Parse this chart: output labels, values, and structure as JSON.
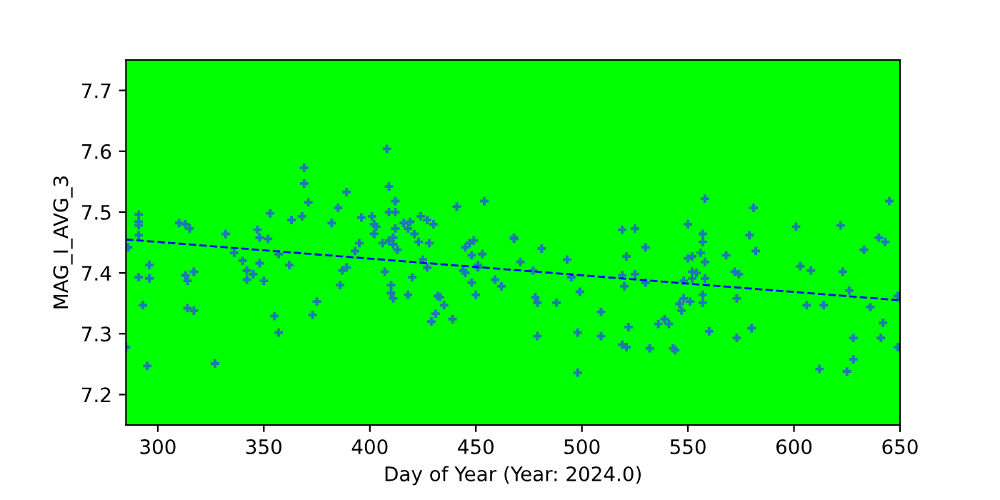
{
  "chart_data": {
    "type": "scatter",
    "xlabel": "Day of Year (Year: 2024.0)",
    "ylabel": "MAG_I_AVG_3",
    "xlim": [
      285,
      650
    ],
    "ylim": [
      7.15,
      7.75
    ],
    "xticks": [
      300,
      350,
      400,
      450,
      500,
      550,
      600,
      650
    ],
    "yticks": [
      7.2,
      7.3,
      7.4,
      7.5,
      7.6,
      7.7
    ],
    "grid": false,
    "series": [
      {
        "color": "#1f77b4",
        "marker": "cross",
        "x": [
          286,
          285,
          291,
          291,
          291,
          291,
          291,
          293,
          295,
          296,
          296,
          310,
          313,
          315,
          313,
          314,
          317,
          314,
          317,
          327,
          332,
          336,
          340,
          342,
          342,
          345,
          348,
          350,
          347,
          348,
          352,
          353,
          357,
          362,
          355,
          357,
          363,
          368,
          369,
          369,
          371,
          373,
          375,
          389,
          385,
          382,
          386,
          387,
          389,
          393,
          395,
          396,
          401,
          402,
          403,
          402,
          408,
          409,
          412,
          409,
          412,
          407,
          410,
          410,
          411,
          406,
          409,
          411,
          411,
          413,
          412,
          416,
          419,
          418,
          421,
          420,
          418,
          423,
          424,
          427,
          430,
          428,
          425,
          427,
          432,
          433,
          435,
          431,
          429,
          439,
          441,
          454,
          445,
          447,
          449,
          448,
          453,
          444,
          445,
          451,
          451,
          448,
          450,
          459,
          462,
          468,
          468,
          471,
          481,
          477,
          478,
          479,
          479,
          488,
          493,
          495,
          499,
          498,
          498,
          509,
          509,
          519,
          525,
          521,
          519,
          520,
          525,
          530,
          530,
          522,
          519,
          521,
          532,
          536,
          539,
          541,
          543,
          544,
          546,
          547,
          548,
          551,
          550,
          550,
          552,
          552,
          554,
          552,
          548,
          557,
          557,
          556,
          558,
          558,
          558,
          557,
          557,
          560,
          568,
          572,
          574,
          573,
          573,
          579,
          581,
          582,
          580,
          601,
          603,
          608,
          606,
          614,
          612,
          622,
          623,
          626,
          628,
          628,
          625,
          633,
          636,
          640,
          643,
          642,
          641,
          645,
          649,
          649
        ],
        "values": [
          7.442,
          7.278,
          7.496,
          7.484,
          7.478,
          7.462,
          7.393,
          7.347,
          7.247,
          7.413,
          7.391,
          7.482,
          7.48,
          7.473,
          7.396,
          7.387,
          7.402,
          7.342,
          7.338,
          7.251,
          7.464,
          7.433,
          7.42,
          7.404,
          7.389,
          7.398,
          7.416,
          7.387,
          7.471,
          7.458,
          7.456,
          7.498,
          7.431,
          7.413,
          7.329,
          7.302,
          7.487,
          7.493,
          7.573,
          7.547,
          7.516,
          7.331,
          7.353,
          7.533,
          7.507,
          7.482,
          7.38,
          7.404,
          7.409,
          7.436,
          7.449,
          7.491,
          7.493,
          7.48,
          7.476,
          7.464,
          7.604,
          7.542,
          7.518,
          7.5,
          7.5,
          7.402,
          7.38,
          7.367,
          7.358,
          7.449,
          7.453,
          7.458,
          7.447,
          7.438,
          7.473,
          7.482,
          7.484,
          7.473,
          7.464,
          7.393,
          7.364,
          7.451,
          7.493,
          7.487,
          7.48,
          7.449,
          7.422,
          7.409,
          7.362,
          7.36,
          7.347,
          7.333,
          7.32,
          7.324,
          7.509,
          7.518,
          7.442,
          7.449,
          7.453,
          7.429,
          7.431,
          7.404,
          7.4,
          7.413,
          7.409,
          7.384,
          7.364,
          7.389,
          7.378,
          7.456,
          7.458,
          7.418,
          7.44,
          7.404,
          7.36,
          7.351,
          7.296,
          7.351,
          7.422,
          7.393,
          7.369,
          7.302,
          7.236,
          7.336,
          7.296,
          7.471,
          7.473,
          7.427,
          7.396,
          7.378,
          7.398,
          7.442,
          7.384,
          7.311,
          7.282,
          7.278,
          7.276,
          7.316,
          7.324,
          7.316,
          7.276,
          7.273,
          7.349,
          7.338,
          7.358,
          7.353,
          7.48,
          7.424,
          7.427,
          7.402,
          7.4,
          7.391,
          7.387,
          7.464,
          7.451,
          7.433,
          7.418,
          7.522,
          7.391,
          7.364,
          7.351,
          7.304,
          7.429,
          7.402,
          7.398,
          7.358,
          7.293,
          7.462,
          7.507,
          7.436,
          7.309,
          7.476,
          7.411,
          7.404,
          7.347,
          7.347,
          7.242,
          7.478,
          7.402,
          7.371,
          7.293,
          7.258,
          7.238,
          7.438,
          7.344,
          7.458,
          7.451,
          7.318,
          7.293,
          7.518,
          7.362,
          7.278
        ]
      },
      {
        "type": "line",
        "color": "#0000ff",
        "line_style": "dashed",
        "marker": "none",
        "x": [
          285,
          650
        ],
        "values": [
          7.455,
          7.355
        ]
      }
    ]
  }
}
